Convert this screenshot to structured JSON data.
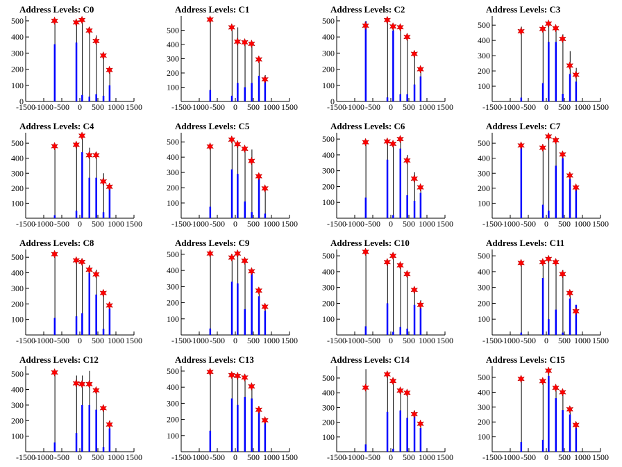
{
  "colors": {
    "bar": "#0000ff",
    "spike": "#000000",
    "star": "#ff0000",
    "axis": "#000000"
  },
  "chart_data": [
    {
      "type": "bar",
      "title": "Address Levels: C0",
      "x_ticks": [
        "-1500",
        "-1000",
        "-500",
        "0",
        "500",
        "1000",
        "1500"
      ],
      "y_ticks": [
        "0",
        "100",
        "200",
        "300",
        "400",
        "500"
      ],
      "xlim": [
        -1500,
        1500
      ],
      "ylim": [
        0,
        530
      ],
      "x": [
        -700,
        -100,
        60,
        260,
        450,
        650,
        820
      ],
      "values": [
        355,
        365,
        40,
        30,
        45,
        35,
        100
      ],
      "spikes": [
        500,
        490,
        510,
        460,
        410,
        290,
        200
      ],
      "stars": [
        500,
        490,
        505,
        440,
        375,
        285,
        195
      ]
    },
    {
      "type": "bar",
      "title": "Address Levels: C1",
      "x_ticks": [
        "-1500",
        "-1000",
        "-500",
        "0",
        "500",
        "1000",
        "1500"
      ],
      "y_ticks": [
        "100",
        "200",
        "300",
        "400",
        "500"
      ],
      "xlim": [
        -1500,
        1500
      ],
      "ylim": [
        0,
        600
      ],
      "x": [
        -700,
        -100,
        60,
        260,
        450,
        650,
        820
      ],
      "values": [
        80,
        40,
        130,
        100,
        130,
        180,
        170
      ],
      "spikes": [
        580,
        520,
        520,
        430,
        415,
        300,
        185
      ],
      "stars": [
        575,
        520,
        420,
        415,
        405,
        295,
        155
      ]
    },
    {
      "type": "bar",
      "title": "Address Levels: C2",
      "x_ticks": [
        "-1500",
        "-1000",
        "-500",
        "0",
        "500",
        "1000",
        "1500"
      ],
      "y_ticks": [
        "0",
        "100",
        "200",
        "300",
        "400",
        "500"
      ],
      "xlim": [
        -1500,
        1500
      ],
      "ylim": [
        0,
        530
      ],
      "x": [
        -700,
        -100,
        60,
        260,
        450,
        650,
        820
      ],
      "values": [
        495,
        25,
        440,
        45,
        45,
        105,
        155
      ],
      "spikes": [
        500,
        505,
        475,
        475,
        420,
        300,
        210
      ],
      "stars": [
        470,
        505,
        465,
        460,
        400,
        295,
        200
      ]
    },
    {
      "type": "bar",
      "title": "Address Levels: C3",
      "x_ticks": [
        "-1500",
        "-1000",
        "-500",
        "0",
        "500",
        "1000",
        "1500"
      ],
      "y_ticks": [
        "100",
        "200",
        "300",
        "400",
        "500"
      ],
      "xlim": [
        -1500,
        1500
      ],
      "ylim": [
        0,
        560
      ],
      "x": [
        -700,
        -100,
        60,
        260,
        450,
        650,
        820
      ],
      "values": [
        25,
        120,
        390,
        390,
        50,
        180,
        130
      ],
      "spikes": [
        490,
        490,
        520,
        490,
        440,
        330,
        220
      ],
      "stars": [
        460,
        475,
        510,
        480,
        410,
        235,
        175
      ]
    },
    {
      "type": "bar",
      "title": "Address Levels: C4",
      "x_ticks": [
        "-1500",
        "-1000",
        "-500",
        "0",
        "500",
        "1000",
        "1500"
      ],
      "y_ticks": [
        "100",
        "200",
        "300",
        "400",
        "500"
      ],
      "xlim": [
        -1500,
        1500
      ],
      "ylim": [
        0,
        570
      ],
      "x": [
        -700,
        -100,
        60,
        260,
        450,
        650,
        820
      ],
      "values": [
        20,
        50,
        440,
        270,
        270,
        40,
        200
      ],
      "spikes": [
        490,
        490,
        550,
        470,
        440,
        300,
        230
      ],
      "stars": [
        480,
        490,
        550,
        420,
        420,
        245,
        210
      ]
    },
    {
      "type": "bar",
      "title": "Address Levels: C5",
      "x_ticks": [
        "-1500",
        "-1000",
        "-500",
        "0",
        "500",
        "1000",
        "1500"
      ],
      "y_ticks": [
        "100",
        "200",
        "300",
        "400",
        "500"
      ],
      "xlim": [
        -1500,
        1500
      ],
      "ylim": [
        0,
        560
      ],
      "x": [
        -700,
        -100,
        60,
        260,
        450,
        650,
        820
      ],
      "values": [
        75,
        320,
        290,
        110,
        40,
        270,
        30
      ],
      "spikes": [
        470,
        520,
        500,
        470,
        450,
        290,
        210
      ],
      "stars": [
        470,
        515,
        485,
        455,
        375,
        275,
        195
      ]
    },
    {
      "type": "bar",
      "title": "Address Levels: C6",
      "x_ticks": [
        "-1500",
        "-1000",
        "-500",
        "0",
        "500",
        "1000",
        "1500"
      ],
      "y_ticks": [
        "100",
        "200",
        "300",
        "400",
        "500"
      ],
      "xlim": [
        -1500,
        1500
      ],
      "ylim": [
        0,
        540
      ],
      "x": [
        -700,
        -100,
        60,
        260,
        450,
        650,
        820
      ],
      "values": [
        130,
        370,
        20,
        440,
        145,
        110,
        160
      ],
      "spikes": [
        490,
        490,
        480,
        505,
        400,
        290,
        210
      ],
      "stars": [
        480,
        485,
        470,
        500,
        365,
        250,
        195
      ]
    },
    {
      "type": "bar",
      "title": "Address Levels: C7",
      "x_ticks": [
        "-1500",
        "-1000",
        "-500",
        "0",
        "500",
        "1000",
        "1500"
      ],
      "y_ticks": [
        "100",
        "200",
        "300",
        "400",
        "500"
      ],
      "xlim": [
        -1500,
        1500
      ],
      "ylim": [
        0,
        570
      ],
      "x": [
        -700,
        -100,
        60,
        260,
        450,
        650,
        820
      ],
      "values": [
        480,
        90,
        50,
        350,
        400,
        260,
        190
      ],
      "spikes": [
        500,
        490,
        555,
        535,
        440,
        290,
        210
      ],
      "stars": [
        485,
        470,
        545,
        520,
        425,
        285,
        205
      ]
    },
    {
      "type": "bar",
      "title": "Address Levels: C8",
      "x_ticks": [
        "-1500",
        "-1000",
        "-500",
        "0",
        "500",
        "1000",
        "1500"
      ],
      "y_ticks": [
        "100",
        "200",
        "300",
        "400",
        "500"
      ],
      "xlim": [
        -1500,
        1500
      ],
      "ylim": [
        0,
        550
      ],
      "x": [
        -700,
        -100,
        60,
        260,
        450,
        650,
        820
      ],
      "values": [
        110,
        120,
        140,
        400,
        260,
        40,
        170
      ],
      "spikes": [
        535,
        490,
        490,
        450,
        420,
        280,
        210
      ],
      "stars": [
        520,
        480,
        470,
        420,
        390,
        270,
        190
      ]
    },
    {
      "type": "bar",
      "title": "Address Levels: C9",
      "x_ticks": [
        "-1500",
        "-1000",
        "-500",
        "0",
        "500",
        "1000",
        "1500"
      ],
      "y_ticks": [
        "100",
        "200",
        "300",
        "400",
        "500"
      ],
      "xlim": [
        -1500,
        1500
      ],
      "ylim": [
        0,
        530
      ],
      "x": [
        -700,
        -100,
        60,
        260,
        450,
        650,
        820
      ],
      "values": [
        40,
        330,
        320,
        160,
        385,
        240,
        150
      ],
      "spikes": [
        510,
        500,
        520,
        470,
        400,
        290,
        180
      ],
      "stars": [
        505,
        480,
        505,
        460,
        395,
        275,
        175
      ]
    },
    {
      "type": "bar",
      "title": "Address Levels: C10",
      "x_ticks": [
        "-1500",
        "-1000",
        "-500",
        "0",
        "500",
        "1000",
        "1500"
      ],
      "y_ticks": [
        "100",
        "200",
        "300",
        "400",
        "500"
      ],
      "xlim": [
        -1500,
        1500
      ],
      "ylim": [
        0,
        540
      ],
      "x": [
        -700,
        -100,
        60,
        260,
        450,
        650,
        820
      ],
      "values": [
        55,
        200,
        20,
        50,
        40,
        190,
        170
      ],
      "spikes": [
        540,
        470,
        520,
        450,
        400,
        300,
        220
      ],
      "stars": [
        525,
        460,
        500,
        440,
        385,
        285,
        190
      ]
    },
    {
      "type": "bar",
      "title": "Address Levels: C11",
      "x_ticks": [
        "-1500",
        "-1000",
        "-500",
        "0",
        "500",
        "1000",
        "1500"
      ],
      "y_ticks": [
        "100",
        "200",
        "300",
        "400",
        "500"
      ],
      "xlim": [
        -1500,
        1500
      ],
      "ylim": [
        0,
        540
      ],
      "x": [
        -700,
        -100,
        60,
        260,
        450,
        650,
        820
      ],
      "values": [
        15,
        360,
        100,
        160,
        15,
        230,
        190
      ],
      "spikes": [
        470,
        470,
        500,
        480,
        410,
        280,
        190
      ],
      "stars": [
        455,
        460,
        480,
        460,
        385,
        265,
        150
      ]
    },
    {
      "type": "bar",
      "title": "Address Levels: C12",
      "x_ticks": [
        "-1500",
        "-1000",
        "-500",
        "0",
        "500",
        "1000",
        "1500"
      ],
      "y_ticks": [
        "100",
        "200",
        "300",
        "400",
        "500"
      ],
      "xlim": [
        -1500,
        1500
      ],
      "ylim": [
        0,
        550
      ],
      "x": [
        -700,
        -100,
        60,
        260,
        450,
        650,
        820
      ],
      "values": [
        60,
        120,
        300,
        300,
        270,
        30,
        150
      ],
      "spikes": [
        520,
        490,
        490,
        520,
        410,
        290,
        200
      ],
      "stars": [
        510,
        440,
        435,
        435,
        395,
        280,
        175
      ]
    },
    {
      "type": "bar",
      "title": "Address Levels: C13",
      "x_ticks": [
        "-1500",
        "-1000",
        "-500",
        "0",
        "500",
        "1000",
        "1500"
      ],
      "y_ticks": [
        "100",
        "200",
        "300",
        "400",
        "500"
      ],
      "xlim": [
        -1500,
        1500
      ],
      "ylim": [
        0,
        530
      ],
      "x": [
        -700,
        -100,
        60,
        260,
        450,
        650,
        820
      ],
      "values": [
        130,
        330,
        290,
        340,
        330,
        270,
        180
      ],
      "spikes": [
        510,
        490,
        490,
        480,
        420,
        280,
        210
      ],
      "stars": [
        495,
        475,
        470,
        460,
        405,
        260,
        195
      ]
    },
    {
      "type": "bar",
      "title": "Address Levels: C14",
      "x_ticks": [
        "-1500",
        "-1000",
        "-500",
        "0",
        "500",
        "1000",
        "1500"
      ],
      "y_ticks": [
        "100",
        "200",
        "300",
        "400",
        "500"
      ],
      "xlim": [
        -1500,
        1500
      ],
      "ylim": [
        0,
        580
      ],
      "x": [
        -700,
        -100,
        60,
        260,
        450,
        650,
        820
      ],
      "values": [
        50,
        270,
        20,
        280,
        230,
        240,
        160
      ],
      "spikes": [
        560,
        540,
        500,
        430,
        410,
        280,
        200
      ],
      "stars": [
        435,
        525,
        480,
        415,
        400,
        255,
        190
      ]
    },
    {
      "type": "bar",
      "title": "Address Levels: C15",
      "x_ticks": [
        "-1500",
        "-1000",
        "-500",
        "0",
        "500",
        "1000",
        "1500"
      ],
      "y_ticks": [
        "100",
        "200",
        "300",
        "400",
        "500"
      ],
      "xlim": [
        -1500,
        1500
      ],
      "ylim": [
        0,
        575
      ],
      "x": [
        -700,
        -100,
        60,
        260,
        450,
        650,
        820
      ],
      "values": [
        65,
        80,
        510,
        360,
        280,
        250,
        160
      ],
      "spikes": [
        500,
        490,
        560,
        450,
        410,
        300,
        200
      ],
      "stars": [
        490,
        475,
        545,
        430,
        400,
        285,
        180
      ]
    }
  ]
}
